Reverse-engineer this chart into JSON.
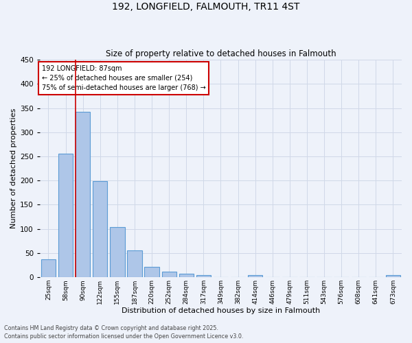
{
  "title1": "192, LONGFIELD, FALMOUTH, TR11 4ST",
  "title2": "Size of property relative to detached houses in Falmouth",
  "xlabel": "Distribution of detached houses by size in Falmouth",
  "ylabel": "Number of detached properties",
  "categories": [
    "25sqm",
    "58sqm",
    "90sqm",
    "122sqm",
    "155sqm",
    "187sqm",
    "220sqm",
    "252sqm",
    "284sqm",
    "317sqm",
    "349sqm",
    "382sqm",
    "414sqm",
    "446sqm",
    "479sqm",
    "511sqm",
    "543sqm",
    "576sqm",
    "608sqm",
    "641sqm",
    "673sqm"
  ],
  "values": [
    37,
    256,
    342,
    199,
    104,
    56,
    21,
    11,
    8,
    5,
    0,
    0,
    4,
    0,
    0,
    0,
    0,
    0,
    0,
    0,
    4
  ],
  "bar_color": "#aec6e8",
  "bar_edge_color": "#5b9bd5",
  "grid_color": "#d0d8e8",
  "background_color": "#eef2fa",
  "red_line_index": 2,
  "annotation_text": "192 LONGFIELD: 87sqm\n← 25% of detached houses are smaller (254)\n75% of semi-detached houses are larger (768) →",
  "annotation_box_color": "#ffffff",
  "annotation_edge_color": "#cc0000",
  "footer1": "Contains HM Land Registry data © Crown copyright and database right 2025.",
  "footer2": "Contains public sector information licensed under the Open Government Licence v3.0.",
  "ylim": [
    0,
    450
  ],
  "yticks": [
    0,
    50,
    100,
    150,
    200,
    250,
    300,
    350,
    400,
    450
  ]
}
